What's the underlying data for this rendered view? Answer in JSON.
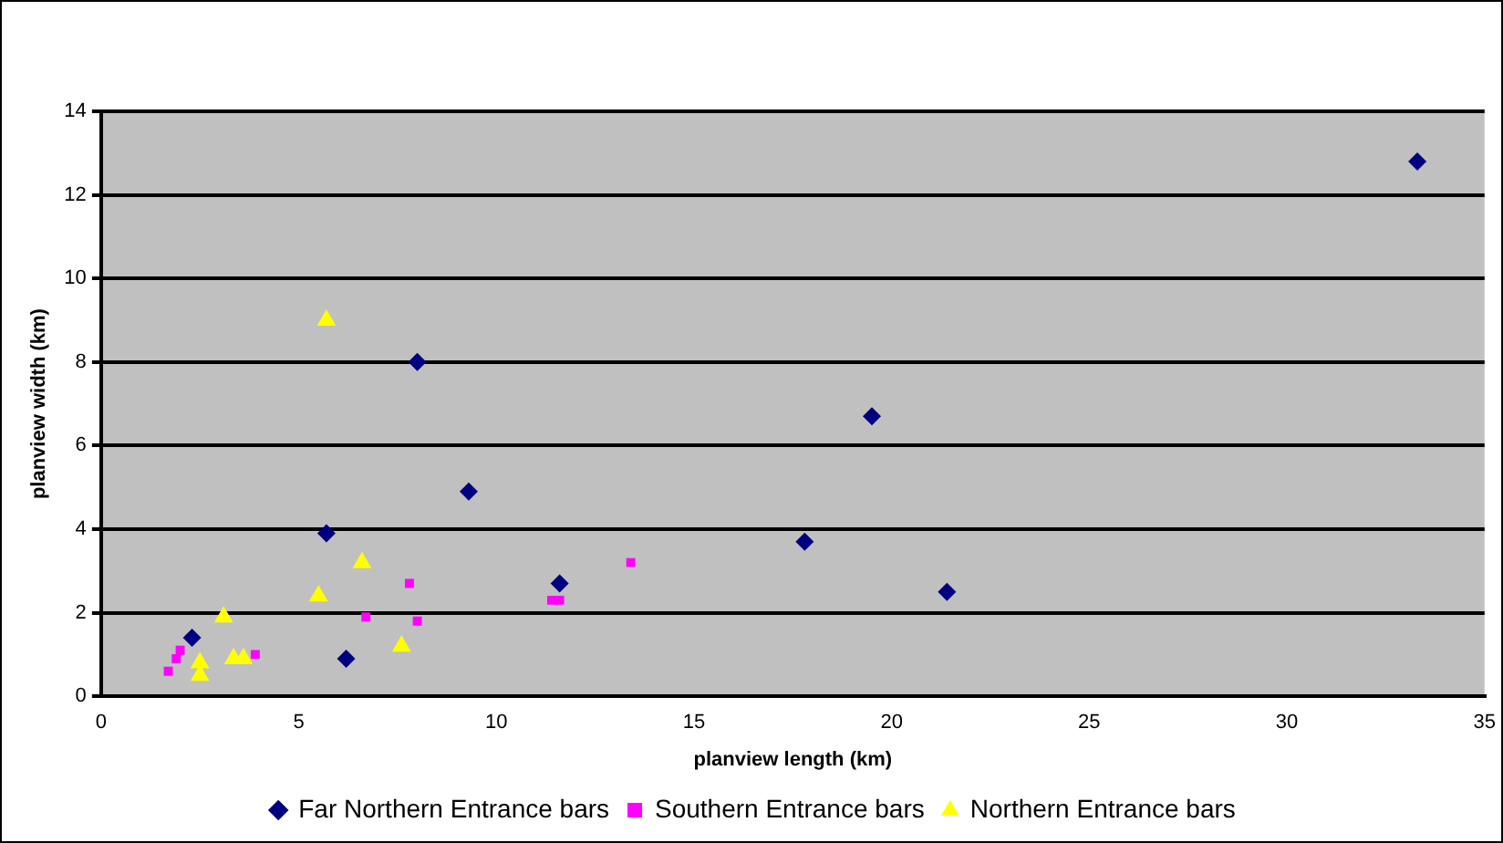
{
  "chart_data": {
    "type": "scatter",
    "xlabel": "planview length (km)",
    "ylabel": "planview width (km)",
    "xlim": [
      0,
      35
    ],
    "xticks": [
      0,
      5,
      10,
      15,
      20,
      25,
      30,
      35
    ],
    "ylim": [
      0,
      14
    ],
    "yticks": [
      0,
      2,
      4,
      6,
      8,
      10,
      12,
      14
    ],
    "grid": "y",
    "legend": "bottom",
    "series": [
      {
        "name": "Far Northern Entrance bars",
        "color": "#000080",
        "marker": "diamond",
        "x": [
          2.3,
          5.7,
          6.2,
          8.0,
          9.3,
          11.6,
          17.8,
          19.5,
          21.4,
          33.3
        ],
        "values": [
          1.4,
          3.9,
          0.9,
          8.0,
          4.9,
          2.7,
          3.7,
          6.7,
          2.5,
          12.8
        ]
      },
      {
        "name": "Southern Entrance bars",
        "color": "#ff00ff",
        "marker": "square",
        "x": [
          1.7,
          1.9,
          2.0,
          3.9,
          6.7,
          7.8,
          8.0,
          11.4,
          11.6,
          13.4
        ],
        "values": [
          0.6,
          0.9,
          1.1,
          1.0,
          1.9,
          2.7,
          1.8,
          2.3,
          2.3,
          3.2
        ]
      },
      {
        "name": "Northern Entrance bars",
        "color": "#ffff00",
        "marker": "triangle",
        "x": [
          2.5,
          2.5,
          3.1,
          3.35,
          3.6,
          5.5,
          5.7,
          6.6,
          7.6
        ],
        "values": [
          0.8,
          0.5,
          1.9,
          0.9,
          0.9,
          2.4,
          9.0,
          3.2,
          1.2
        ]
      }
    ]
  }
}
